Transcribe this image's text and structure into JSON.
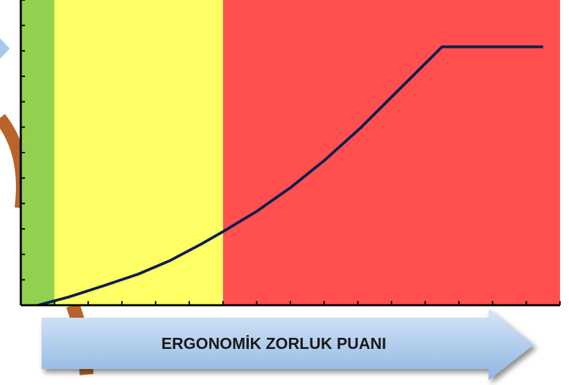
{
  "chart_data": {
    "type": "line",
    "xlabel": "ERGONOMİK ZORLUK PUANI",
    "x": [
      0.51,
      1.44,
      2.47,
      3.5,
      4.42,
      5.35,
      5.97,
      7.0,
      8.02,
      9.05,
      10.08,
      11.11,
      12.5,
      15.5
    ],
    "values": [
      0,
      0.33,
      0.77,
      1.23,
      1.75,
      2.4,
      2.87,
      3.69,
      4.64,
      5.74,
      6.97,
      8.33,
      10.16,
      10.16
    ],
    "color": "#0d1f4f",
    "zones": [
      {
        "from": 0,
        "to": 1,
        "color": "#92d050"
      },
      {
        "from": 1,
        "to": 6,
        "color": "#ffff66"
      },
      {
        "from": 6,
        "to": 16,
        "color": "#ff4f4f"
      }
    ],
    "xlim": [
      0,
      16
    ],
    "ylim": [
      0,
      12
    ],
    "xticks": [
      0,
      1,
      2,
      3,
      4,
      5,
      6,
      7,
      8,
      9,
      10,
      11,
      12,
      13,
      14,
      15,
      16
    ],
    "yticks": [
      0,
      1,
      2,
      3,
      4,
      5,
      6,
      7,
      8,
      9,
      10,
      11,
      12
    ]
  }
}
